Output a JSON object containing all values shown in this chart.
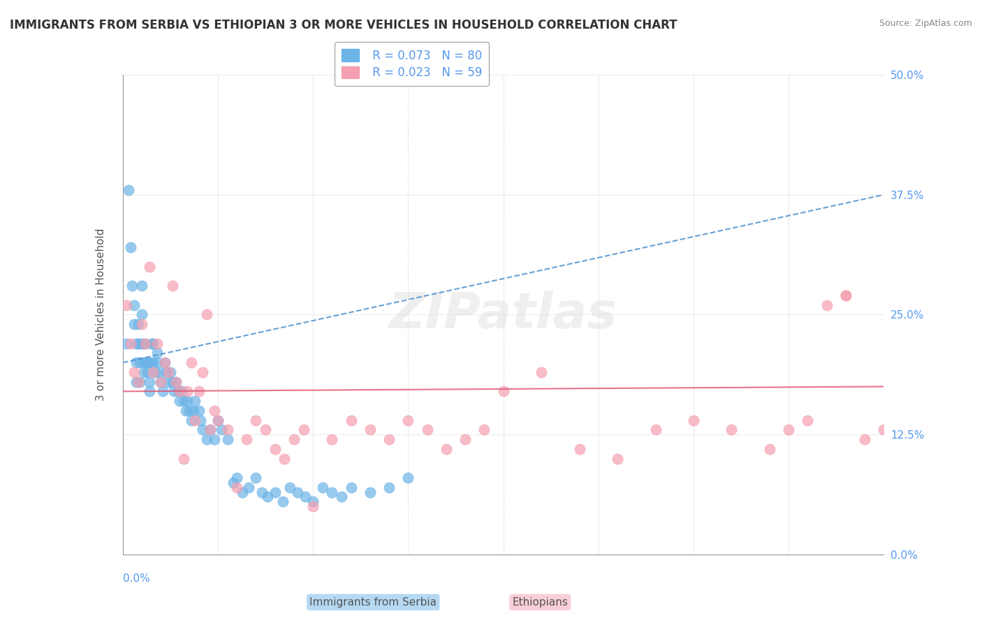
{
  "title": "IMMIGRANTS FROM SERBIA VS ETHIOPIAN 3 OR MORE VEHICLES IN HOUSEHOLD CORRELATION CHART",
  "source": "Source: ZipAtlas.com",
  "ylabel": "3 or more Vehicles in Household",
  "legend1_r": "R = 0.073",
  "legend1_n": "N = 80",
  "legend2_r": "R = 0.023",
  "legend2_n": "N = 59",
  "serbia_color": "#6cb4e8",
  "ethiopia_color": "#f4a0b0",
  "serbia_line_color": "#4488cc",
  "ethiopia_line_color": "#e05070",
  "label_color": "#5599ee",
  "serbia_x": [
    0.002,
    0.003,
    0.004,
    0.005,
    0.006,
    0.006,
    0.007,
    0.007,
    0.007,
    0.008,
    0.008,
    0.009,
    0.009,
    0.01,
    0.01,
    0.01,
    0.011,
    0.011,
    0.012,
    0.012,
    0.013,
    0.013,
    0.014,
    0.014,
    0.015,
    0.015,
    0.016,
    0.016,
    0.017,
    0.018,
    0.018,
    0.019,
    0.02,
    0.021,
    0.022,
    0.023,
    0.024,
    0.025,
    0.026,
    0.027,
    0.028,
    0.029,
    0.03,
    0.031,
    0.032,
    0.033,
    0.034,
    0.035,
    0.036,
    0.037,
    0.038,
    0.04,
    0.041,
    0.042,
    0.044,
    0.046,
    0.048,
    0.05,
    0.052,
    0.055,
    0.058,
    0.06,
    0.063,
    0.066,
    0.07,
    0.073,
    0.076,
    0.08,
    0.084,
    0.088,
    0.092,
    0.096,
    0.1,
    0.105,
    0.11,
    0.115,
    0.12,
    0.13,
    0.14,
    0.15
  ],
  "serbia_y": [
    0.22,
    0.38,
    0.32,
    0.28,
    0.26,
    0.24,
    0.22,
    0.2,
    0.18,
    0.24,
    0.22,
    0.2,
    0.18,
    0.28,
    0.25,
    0.22,
    0.2,
    0.19,
    0.22,
    0.2,
    0.2,
    0.19,
    0.18,
    0.17,
    0.22,
    0.2,
    0.22,
    0.2,
    0.19,
    0.21,
    0.2,
    0.19,
    0.18,
    0.17,
    0.2,
    0.19,
    0.18,
    0.19,
    0.18,
    0.17,
    0.18,
    0.17,
    0.16,
    0.17,
    0.16,
    0.15,
    0.16,
    0.15,
    0.14,
    0.15,
    0.16,
    0.15,
    0.14,
    0.13,
    0.12,
    0.13,
    0.12,
    0.14,
    0.13,
    0.12,
    0.075,
    0.08,
    0.065,
    0.07,
    0.08,
    0.065,
    0.06,
    0.065,
    0.055,
    0.07,
    0.065,
    0.06,
    0.055,
    0.07,
    0.065,
    0.06,
    0.07,
    0.065,
    0.07,
    0.08
  ],
  "ethiopia_x": [
    0.002,
    0.004,
    0.006,
    0.008,
    0.01,
    0.012,
    0.014,
    0.016,
    0.018,
    0.02,
    0.022,
    0.024,
    0.026,
    0.028,
    0.03,
    0.032,
    0.034,
    0.036,
    0.038,
    0.04,
    0.042,
    0.044,
    0.046,
    0.048,
    0.05,
    0.055,
    0.06,
    0.065,
    0.07,
    0.075,
    0.08,
    0.085,
    0.09,
    0.095,
    0.1,
    0.11,
    0.12,
    0.13,
    0.14,
    0.15,
    0.16,
    0.17,
    0.18,
    0.19,
    0.2,
    0.22,
    0.24,
    0.26,
    0.28,
    0.3,
    0.32,
    0.34,
    0.35,
    0.36,
    0.37,
    0.38,
    0.39,
    0.4,
    0.38
  ],
  "ethiopia_y": [
    0.26,
    0.22,
    0.19,
    0.18,
    0.24,
    0.22,
    0.3,
    0.19,
    0.22,
    0.18,
    0.2,
    0.19,
    0.28,
    0.18,
    0.17,
    0.1,
    0.17,
    0.2,
    0.14,
    0.17,
    0.19,
    0.25,
    0.13,
    0.15,
    0.14,
    0.13,
    0.07,
    0.12,
    0.14,
    0.13,
    0.11,
    0.1,
    0.12,
    0.13,
    0.05,
    0.12,
    0.14,
    0.13,
    0.12,
    0.14,
    0.13,
    0.11,
    0.12,
    0.13,
    0.17,
    0.19,
    0.11,
    0.1,
    0.13,
    0.14,
    0.13,
    0.11,
    0.13,
    0.14,
    0.26,
    0.27,
    0.12,
    0.13,
    0.27
  ],
  "xlim": [
    0.0,
    0.4
  ],
  "ylim": [
    0.0,
    0.5
  ],
  "x_ticks": [
    0.0,
    0.05,
    0.1,
    0.15,
    0.2,
    0.25,
    0.3,
    0.35,
    0.4
  ],
  "y_ticks": [
    0.0,
    0.125,
    0.25,
    0.375,
    0.5
  ],
  "serbia_trend_start": 0.2,
  "serbia_trend_end": 0.375,
  "ethiopia_trend_start": 0.17,
  "ethiopia_trend_end": 0.175
}
